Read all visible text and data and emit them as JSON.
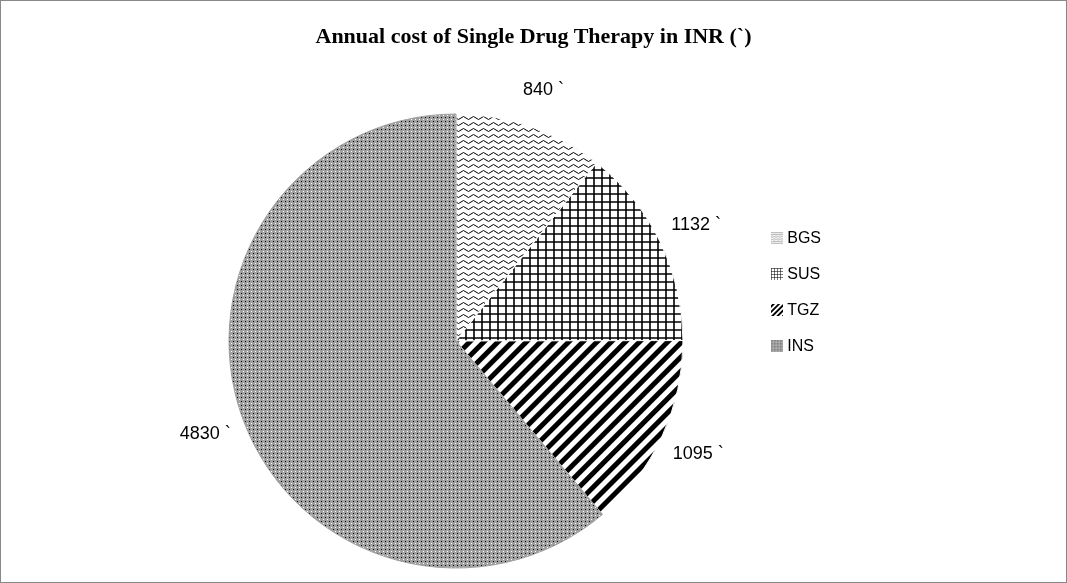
{
  "chart_data": {
    "type": "pie",
    "title": "Annual cost of Single Drug Therapy in INR (`)",
    "categories": [
      "BGS",
      "SUS",
      "TGZ",
      "INS"
    ],
    "values": [
      840,
      1132,
      1095,
      4830
    ],
    "value_labels": [
      "840 `",
      "1132 `",
      "1095 `",
      "4830 `"
    ],
    "colors": [
      "#ffffff",
      "#ffffff",
      "#ffffff",
      "#a0a0a0"
    ],
    "legend": "right"
  }
}
